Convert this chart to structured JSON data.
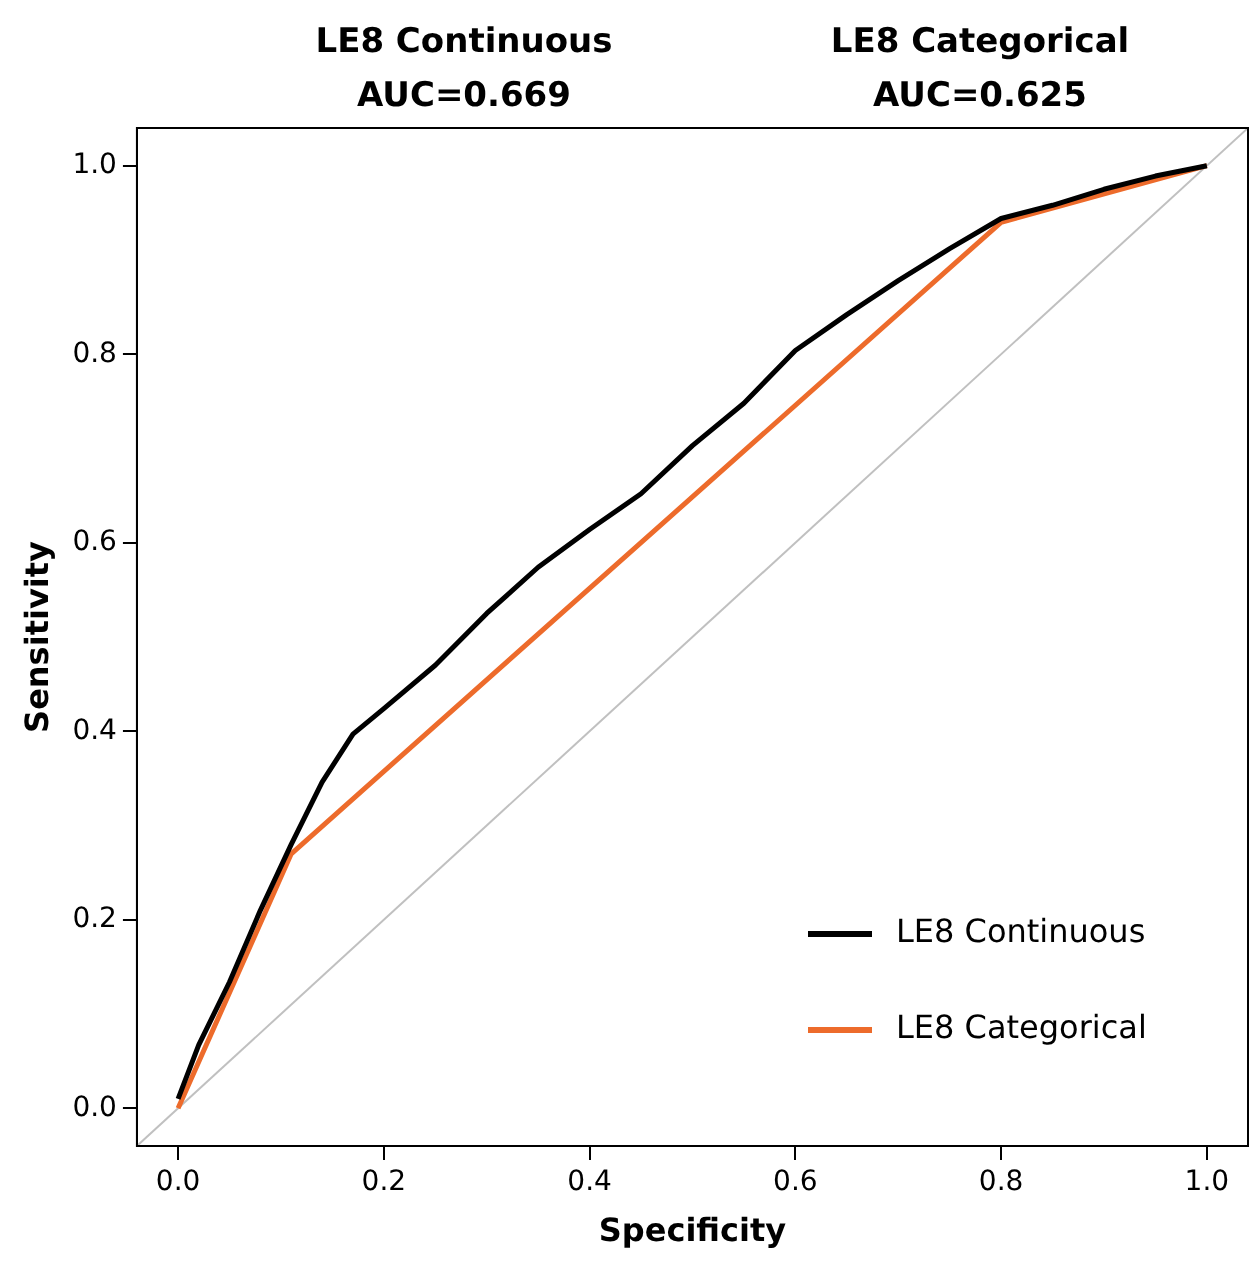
{
  "chart_data": {
    "type": "line",
    "xlabel": "Specificity",
    "ylabel": "Sensitivity",
    "annotations": [
      "LE8 Continuous\nAUC=0.669",
      "LE8 Categorical\nAUC=0.625"
    ],
    "xlim": [
      -0.04,
      1.04
    ],
    "ylim": [
      -0.04,
      1.04
    ],
    "xticks": [
      {
        "value": 0,
        "label": "0.0"
      },
      {
        "value": 0.2,
        "label": "0.2"
      },
      {
        "value": 0.4,
        "label": "0.4"
      },
      {
        "value": 0.6,
        "label": "0.6"
      },
      {
        "value": 0.8,
        "label": "0.8"
      },
      {
        "value": 1,
        "label": "1.0"
      }
    ],
    "yticks": [
      {
        "value": 0,
        "label": "0.0"
      },
      {
        "value": 0.2,
        "label": "0.2"
      },
      {
        "value": 0.4,
        "label": "0.4"
      },
      {
        "value": 0.6,
        "label": "0.6"
      },
      {
        "value": 0.8,
        "label": "0.8"
      },
      {
        "value": 1,
        "label": "1.0"
      }
    ],
    "grid": false,
    "legend": "bottom right",
    "marker": "none",
    "line_style": "solid",
    "series": [
      {
        "name": "LE8 Continuous",
        "color": "#000000",
        "x": [
          0,
          0.02,
          0.05,
          0.08,
          0.11,
          0.14,
          0.17,
          0.2,
          0.25,
          0.3,
          0.35,
          0.4,
          0.45,
          0.5,
          0.55,
          0.6,
          0.65,
          0.7,
          0.75,
          0.8,
          0.85,
          0.9,
          0.95,
          1
        ],
        "values": [
          0.01,
          0.067,
          0.134,
          0.21,
          0.28,
          0.346,
          0.397,
          0.424,
          0.47,
          0.525,
          0.574,
          0.614,
          0.652,
          0.703,
          0.748,
          0.804,
          0.842,
          0.878,
          0.912,
          0.944,
          0.958,
          0.975,
          0.989,
          1
        ]
      },
      {
        "name": "LE8 Categorical",
        "color": "#ed6b2b",
        "x": [
          0,
          0.11,
          0.8,
          1
        ],
        "values": [
          0,
          0.27,
          0.94,
          1
        ]
      },
      {
        "color": "#c0c0c0",
        "x": [
          -0.04,
          1.04
        ],
        "values": [
          -0.04,
          1.04
        ]
      }
    ]
  }
}
